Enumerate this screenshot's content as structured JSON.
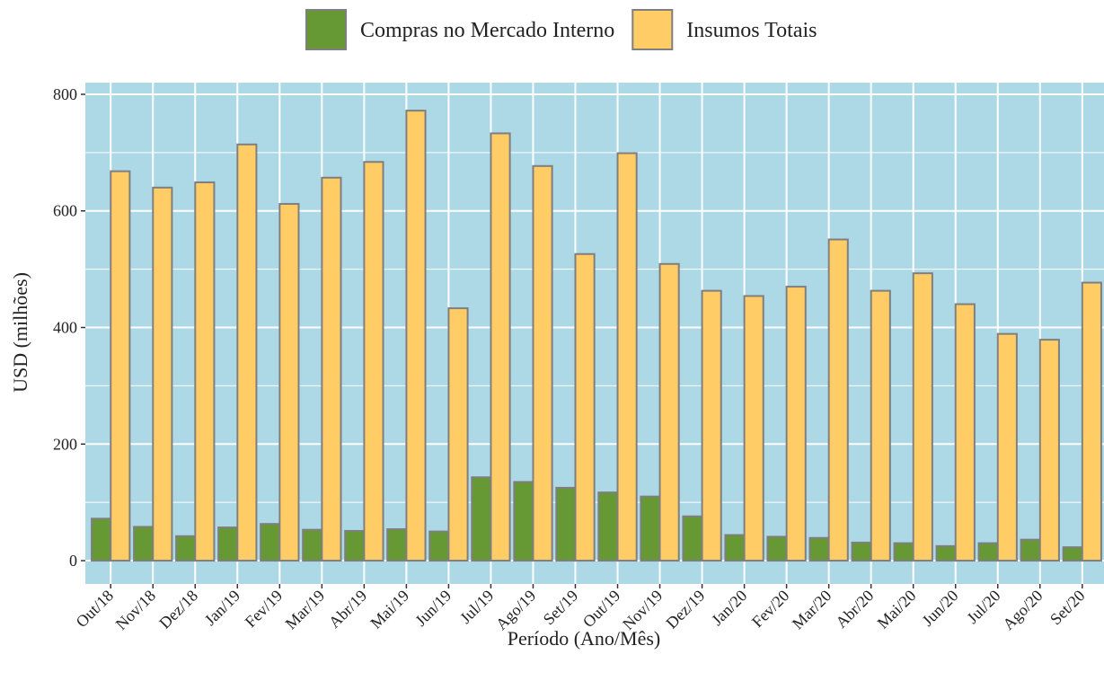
{
  "chart_data": {
    "type": "bar",
    "x_label": "Período (Ano/Mês)",
    "y_label": "USD (milhões)",
    "categories": [
      "Out/18",
      "Nov/18",
      "Dez/18",
      "Jan/19",
      "Fev/19",
      "Mar/19",
      "Abr/19",
      "Mai/19",
      "Jun/19",
      "Jul/19",
      "Ago/19",
      "Set/19",
      "Out/19",
      "Nov/19",
      "Dez/19",
      "Jan/20",
      "Fev/20",
      "Mar/20",
      "Abr/20",
      "Mai/20",
      "Jun/20",
      "Jul/20",
      "Ago/20",
      "Set/20"
    ],
    "series": [
      {
        "name": "Compras no Mercado Interno",
        "color": "#669933",
        "values": [
          72,
          58,
          42,
          57,
          63,
          53,
          51,
          54,
          50,
          143,
          135,
          125,
          117,
          110,
          76,
          44,
          41,
          39,
          31,
          30,
          25,
          30,
          36,
          23
        ]
      },
      {
        "name": "Insumos Totais",
        "color": "#ffcc66",
        "values": [
          668,
          640,
          649,
          714,
          612,
          657,
          684,
          772,
          433,
          733,
          677,
          526,
          699,
          509,
          463,
          454,
          470,
          551,
          463,
          493,
          440,
          389,
          379,
          477
        ]
      }
    ],
    "ylim": [
      -40,
      820
    ],
    "yticks": [
      0,
      200,
      400,
      600,
      800
    ],
    "grid": true,
    "legend": "top"
  }
}
